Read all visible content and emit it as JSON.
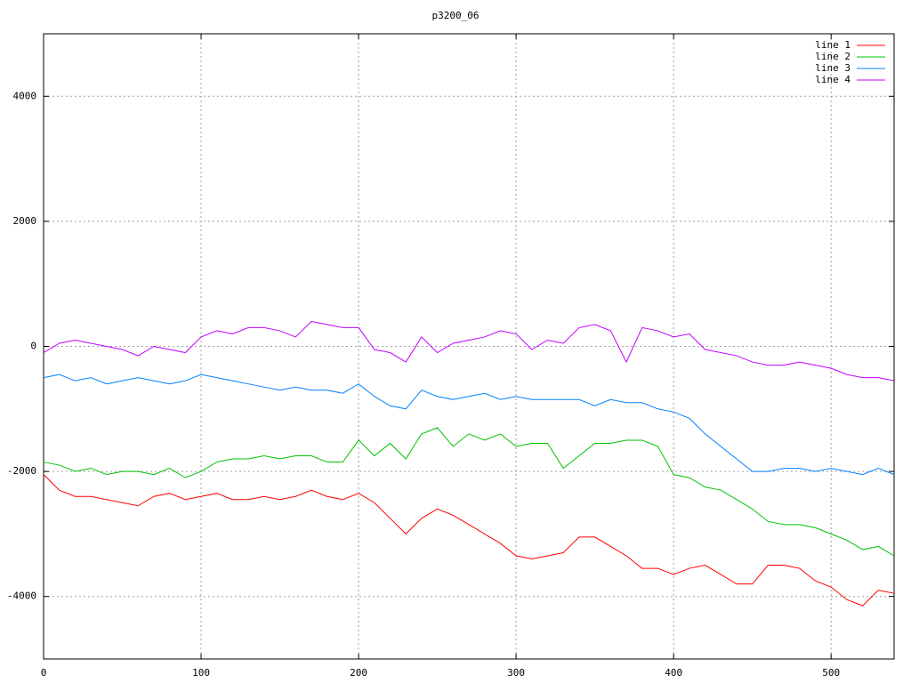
{
  "chart_data": {
    "type": "line",
    "title": "p3200_06",
    "x": [
      0,
      10,
      20,
      30,
      40,
      50,
      60,
      70,
      80,
      90,
      100,
      110,
      120,
      130,
      140,
      150,
      160,
      170,
      180,
      190,
      200,
      210,
      220,
      230,
      240,
      250,
      260,
      270,
      280,
      290,
      300,
      310,
      320,
      330,
      340,
      350,
      360,
      370,
      380,
      390,
      400,
      410,
      420,
      430,
      440,
      450,
      460,
      470,
      480,
      490,
      500,
      510,
      520,
      530,
      540
    ],
    "series": [
      {
        "name": "line 1",
        "color": "#ff0000",
        "values": [
          -2050,
          -2300,
          -2400,
          -2400,
          -2450,
          -2500,
          -2550,
          -2400,
          -2350,
          -2450,
          -2400,
          -2350,
          -2450,
          -2450,
          -2400,
          -2450,
          -2400,
          -2300,
          -2400,
          -2450,
          -2350,
          -2500,
          -2750,
          -3000,
          -2750,
          -2600,
          -2700,
          -2850,
          -3000,
          -3150,
          -3350,
          -3400,
          -3350,
          -3300,
          -3050,
          -3050,
          -3200,
          -3350,
          -3550,
          -3550,
          -3650,
          -3550,
          -3500,
          -3650,
          -3800,
          -3800,
          -3500,
          -3500,
          -3550,
          -3750,
          -3850,
          -4050,
          -4150,
          -3900,
          -3950
        ]
      },
      {
        "name": "line 2",
        "color": "#00c000",
        "values": [
          -1850,
          -1900,
          -2000,
          -1950,
          -2050,
          -2000,
          -2000,
          -2050,
          -1950,
          -2100,
          -2000,
          -1850,
          -1800,
          -1800,
          -1750,
          -1800,
          -1750,
          -1750,
          -1850,
          -1850,
          -1500,
          -1750,
          -1550,
          -1800,
          -1400,
          -1300,
          -1600,
          -1400,
          -1500,
          -1400,
          -1600,
          -1550,
          -1550,
          -1950,
          -1750,
          -1550,
          -1550,
          -1500,
          -1500,
          -1600,
          -2050,
          -2100,
          -2250,
          -2300,
          -2450,
          -2600,
          -2800,
          -2850,
          -2850,
          -2900,
          -3000,
          -3100,
          -3250,
          -3200,
          -3350
        ]
      },
      {
        "name": "line 3",
        "color": "#0080ff",
        "values": [
          -500,
          -450,
          -550,
          -500,
          -600,
          -550,
          -500,
          -550,
          -600,
          -550,
          -450,
          -500,
          -550,
          -600,
          -650,
          -700,
          -650,
          -700,
          -700,
          -750,
          -600,
          -800,
          -950,
          -1000,
          -700,
          -800,
          -850,
          -800,
          -750,
          -850,
          -800,
          -850,
          -850,
          -850,
          -850,
          -950,
          -850,
          -900,
          -900,
          -1000,
          -1050,
          -1150,
          -1400,
          -1600,
          -1800,
          -2000,
          -2000,
          -1950,
          -1950,
          -2000,
          -1950,
          -2000,
          -2050,
          -1950,
          -2050
        ]
      },
      {
        "name": "line 4",
        "color": "#c000ff",
        "values": [
          -100,
          50,
          100,
          50,
          0,
          -50,
          -150,
          0,
          -50,
          -100,
          150,
          250,
          200,
          300,
          300,
          250,
          150,
          400,
          350,
          300,
          300,
          -50,
          -100,
          -250,
          150,
          -100,
          50,
          100,
          150,
          250,
          200,
          -50,
          100,
          50,
          300,
          350,
          250,
          -250,
          300,
          250,
          150,
          200,
          -50,
          -100,
          -150,
          -250,
          -300,
          -300,
          -250,
          -300,
          -350,
          -450,
          -500,
          -500,
          -550
        ]
      }
    ],
    "xlim": [
      0,
      540
    ],
    "xticks": [
      0,
      100,
      200,
      300,
      400,
      500
    ],
    "ylim": [
      -5000,
      5000
    ],
    "yticks": [
      -4000,
      -2000,
      0,
      2000,
      4000
    ],
    "grid": true,
    "legend": "top-right"
  }
}
